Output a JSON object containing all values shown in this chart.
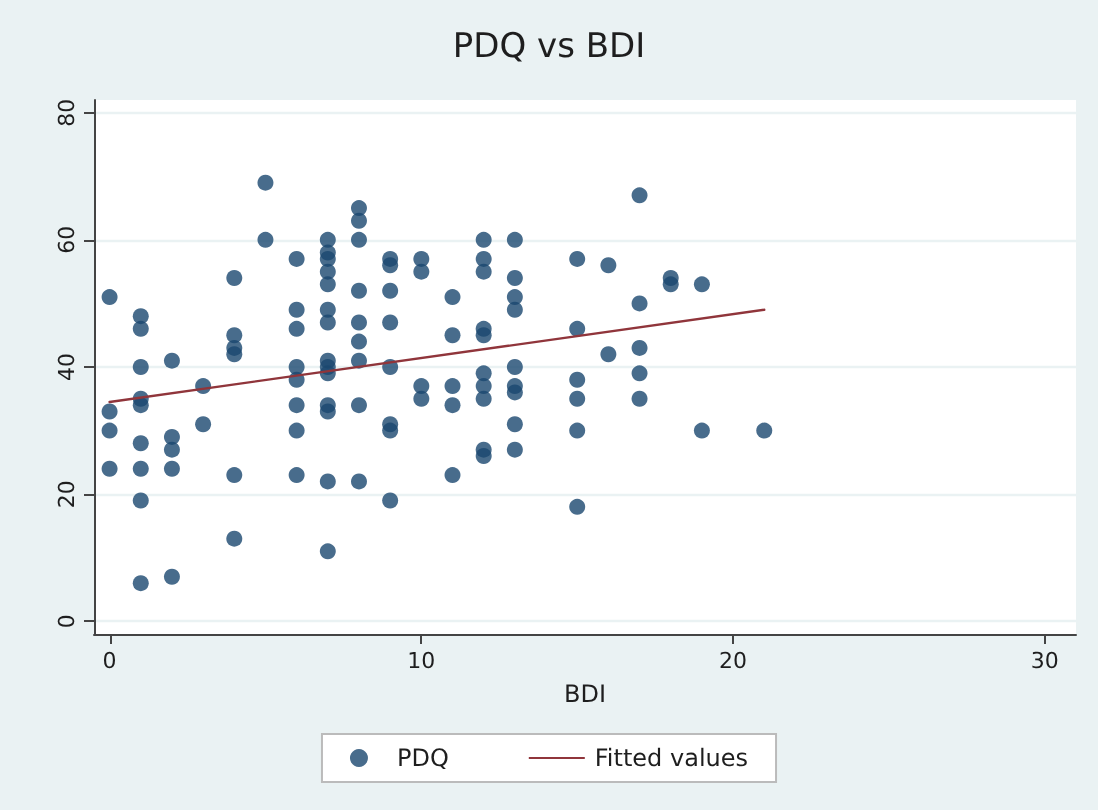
{
  "chart_data": {
    "type": "scatter",
    "title": "PDQ vs BDI",
    "xlabel": "BDI",
    "xlim": [
      -0.5,
      31
    ],
    "xticks": [
      0,
      10,
      20,
      30
    ],
    "ylim": [
      -2,
      82
    ],
    "yticks": [
      0,
      20,
      40,
      60,
      80
    ],
    "grid": "y",
    "legend": "bottom",
    "marker": "circle",
    "series": [
      {
        "name": "PDQ",
        "color": "#1a476f",
        "x": [
          0,
          0,
          0,
          0,
          1,
          1,
          1,
          1,
          1,
          1,
          1,
          1,
          1,
          2,
          2,
          2,
          2,
          2,
          3,
          3,
          4,
          4,
          4,
          4,
          4,
          4,
          5,
          5,
          6,
          6,
          6,
          6,
          6,
          6,
          6,
          6,
          7,
          7,
          7,
          7,
          7,
          7,
          7,
          7,
          7,
          7,
          7,
          7,
          7,
          7,
          8,
          8,
          8,
          8,
          8,
          8,
          8,
          8,
          8,
          9,
          9,
          9,
          9,
          9,
          9,
          9,
          9,
          10,
          10,
          10,
          10,
          11,
          11,
          11,
          11,
          11,
          12,
          12,
          12,
          12,
          12,
          12,
          12,
          12,
          12,
          12,
          13,
          13,
          13,
          13,
          13,
          13,
          13,
          13,
          13,
          15,
          15,
          15,
          15,
          15,
          15,
          16,
          16,
          17,
          17,
          17,
          17,
          17,
          18,
          18,
          19,
          19,
          21
        ],
        "values": [
          51,
          33,
          30,
          24,
          48,
          46,
          40,
          35,
          34,
          28,
          24,
          19,
          6,
          41,
          29,
          27,
          24,
          7,
          37,
          31,
          54,
          45,
          43,
          42,
          23,
          13,
          69,
          60,
          57,
          49,
          46,
          40,
          38,
          34,
          30,
          23,
          60,
          58,
          57,
          55,
          53,
          49,
          47,
          41,
          40,
          39,
          34,
          33,
          22,
          11,
          65,
          63,
          60,
          52,
          47,
          44,
          41,
          34,
          22,
          57,
          56,
          52,
          47,
          40,
          31,
          30,
          19,
          57,
          55,
          37,
          35,
          51,
          45,
          37,
          34,
          23,
          60,
          57,
          55,
          46,
          45,
          39,
          37,
          35,
          27,
          26,
          60,
          54,
          51,
          49,
          40,
          37,
          36,
          31,
          27,
          57,
          46,
          38,
          35,
          30,
          18,
          56,
          42,
          67,
          50,
          43,
          39,
          35,
          54,
          53,
          53,
          30,
          30
        ]
      },
      {
        "name": "Fitted values",
        "type": "line",
        "color": "#90353b",
        "marker": "none",
        "x": [
          0,
          21
        ],
        "values": [
          34.5,
          49
        ]
      }
    ]
  }
}
